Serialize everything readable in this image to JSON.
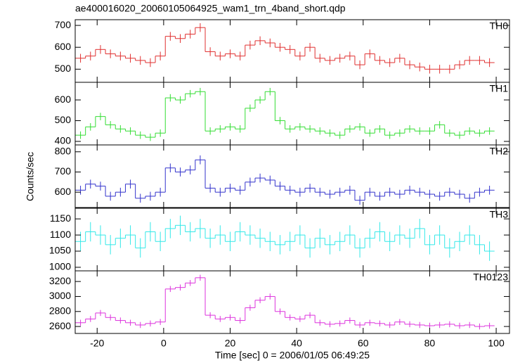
{
  "chart_data": [
    {
      "type": "step",
      "title": "ae400016020_20060105064925_wam1_trn_4band_short.qdp",
      "label": "TH0",
      "color": "#e03030",
      "x": [
        -25,
        -22,
        -19,
        -16,
        -13,
        -10,
        -7,
        -4,
        -1,
        2,
        5,
        8,
        11,
        14,
        17,
        20,
        23,
        26,
        29,
        32,
        35,
        38,
        41,
        44,
        47,
        50,
        53,
        56,
        59,
        62,
        65,
        68,
        71,
        74,
        77,
        80,
        83,
        86,
        89,
        92,
        95,
        98
      ],
      "values": [
        550,
        560,
        590,
        570,
        560,
        550,
        540,
        530,
        560,
        650,
        640,
        660,
        690,
        580,
        560,
        570,
        560,
        610,
        630,
        620,
        600,
        590,
        560,
        600,
        550,
        540,
        550,
        560,
        520,
        570,
        540,
        530,
        550,
        520,
        510,
        500,
        500,
        500,
        520,
        540,
        540,
        530
      ],
      "errors": [
        20,
        20,
        20,
        20,
        20,
        20,
        20,
        20,
        20,
        20,
        20,
        20,
        20,
        20,
        20,
        20,
        20,
        20,
        20,
        20,
        20,
        20,
        20,
        20,
        20,
        20,
        20,
        20,
        20,
        20,
        20,
        20,
        20,
        20,
        20,
        20,
        20,
        20,
        20,
        20,
        20,
        20
      ],
      "xlim": [
        -26.6,
        104
      ],
      "xticks": [
        -20,
        0,
        20,
        40,
        60,
        80,
        100
      ],
      "ylim": [
        440,
        726
      ],
      "yticks": [
        500,
        600,
        700
      ]
    },
    {
      "type": "step",
      "label": "TH1",
      "color": "#33dd33",
      "x": [
        -25,
        -22,
        -19,
        -16,
        -13,
        -10,
        -7,
        -4,
        -1,
        2,
        5,
        8,
        11,
        14,
        17,
        20,
        23,
        26,
        29,
        32,
        35,
        38,
        41,
        44,
        47,
        50,
        53,
        56,
        59,
        62,
        65,
        68,
        71,
        74,
        77,
        80,
        83,
        86,
        89,
        92,
        95,
        98
      ],
      "values": [
        430,
        470,
        520,
        480,
        460,
        450,
        430,
        420,
        440,
        610,
        600,
        630,
        640,
        450,
        460,
        470,
        460,
        560,
        600,
        640,
        500,
        460,
        470,
        460,
        450,
        440,
        430,
        460,
        470,
        440,
        460,
        430,
        440,
        460,
        450,
        450,
        480,
        440,
        430,
        450,
        440,
        450
      ],
      "errors": [
        18,
        18,
        18,
        18,
        18,
        18,
        18,
        18,
        18,
        18,
        18,
        18,
        18,
        18,
        18,
        18,
        18,
        18,
        18,
        18,
        18,
        18,
        18,
        18,
        18,
        18,
        18,
        18,
        18,
        18,
        18,
        18,
        18,
        18,
        18,
        18,
        18,
        18,
        18,
        18,
        18,
        18
      ],
      "xlim": [
        -26.6,
        104
      ],
      "xticks": [
        -20,
        0,
        20,
        40,
        60,
        80,
        100
      ],
      "ylim": [
        383,
        685
      ],
      "yticks": [
        400,
        500,
        600
      ]
    },
    {
      "type": "step",
      "label": "TH2",
      "color": "#3333cc",
      "ylabel": "Counts/sec",
      "x": [
        -25,
        -22,
        -19,
        -16,
        -13,
        -10,
        -7,
        -4,
        -1,
        2,
        5,
        8,
        11,
        14,
        17,
        20,
        23,
        26,
        29,
        32,
        35,
        38,
        41,
        44,
        47,
        50,
        53,
        56,
        59,
        62,
        65,
        68,
        71,
        74,
        77,
        80,
        83,
        86,
        89,
        92,
        95,
        98
      ],
      "values": [
        610,
        640,
        630,
        580,
        600,
        640,
        570,
        580,
        600,
        720,
        700,
        710,
        760,
        620,
        600,
        620,
        610,
        650,
        670,
        660,
        630,
        610,
        600,
        620,
        600,
        590,
        600,
        610,
        560,
        600,
        580,
        600,
        590,
        610,
        600,
        590,
        580,
        600,
        590,
        570,
        600,
        610
      ],
      "errors": [
        22,
        22,
        22,
        22,
        22,
        22,
        22,
        22,
        22,
        22,
        22,
        22,
        22,
        22,
        22,
        22,
        22,
        22,
        22,
        22,
        22,
        22,
        22,
        22,
        22,
        22,
        22,
        22,
        22,
        22,
        22,
        22,
        22,
        22,
        22,
        22,
        22,
        22,
        22,
        22,
        22,
        22
      ],
      "xlim": [
        -26.6,
        104
      ],
      "xticks": [
        -20,
        0,
        20,
        40,
        60,
        80,
        100
      ],
      "ylim": [
        524,
        834
      ],
      "yticks": [
        600,
        700,
        800
      ]
    },
    {
      "type": "step",
      "label": "TH3",
      "color": "#33e8e8",
      "x": [
        -25,
        -22,
        -19,
        -16,
        -13,
        -10,
        -7,
        -4,
        -1,
        2,
        5,
        8,
        11,
        14,
        17,
        20,
        23,
        26,
        29,
        32,
        35,
        38,
        41,
        44,
        47,
        50,
        53,
        56,
        59,
        62,
        65,
        68,
        71,
        74,
        77,
        80,
        83,
        86,
        89,
        92,
        95,
        98
      ],
      "values": [
        1080,
        1110,
        1100,
        1070,
        1090,
        1100,
        1060,
        1110,
        1080,
        1120,
        1130,
        1110,
        1120,
        1090,
        1100,
        1080,
        1110,
        1100,
        1090,
        1080,
        1070,
        1080,
        1100,
        1060,
        1090,
        1070,
        1080,
        1100,
        1060,
        1090,
        1110,
        1080,
        1100,
        1090,
        1120,
        1070,
        1100,
        1060,
        1080,
        1100,
        1070,
        1050
      ],
      "errors": [
        30,
        30,
        30,
        30,
        30,
        30,
        30,
        30,
        30,
        30,
        30,
        30,
        30,
        30,
        30,
        30,
        30,
        30,
        30,
        30,
        30,
        30,
        30,
        30,
        30,
        30,
        30,
        30,
        30,
        30,
        30,
        30,
        30,
        30,
        30,
        30,
        30,
        30,
        30,
        30,
        30,
        30
      ],
      "xlim": [
        -26.6,
        104
      ],
      "xticks": [
        -20,
        0,
        20,
        40,
        60,
        80,
        100
      ],
      "ylim": [
        989,
        1183
      ],
      "yticks": [
        1000,
        1050,
        1100,
        1150
      ]
    },
    {
      "type": "step",
      "label": "TH0123",
      "color": "#dd33dd",
      "xlabel": "Time [sec] 0 = 2006/01/05 06:49:25",
      "x": [
        -25,
        -22,
        -19,
        -16,
        -13,
        -10,
        -7,
        -4,
        -1,
        2,
        5,
        8,
        11,
        14,
        17,
        20,
        23,
        26,
        29,
        32,
        35,
        38,
        41,
        44,
        47,
        50,
        53,
        56,
        59,
        62,
        65,
        68,
        71,
        74,
        77,
        80,
        83,
        86,
        89,
        92,
        95,
        98
      ],
      "values": [
        2650,
        2700,
        2780,
        2720,
        2680,
        2650,
        2620,
        2640,
        2660,
        3100,
        3120,
        3180,
        3250,
        2750,
        2700,
        2720,
        2680,
        2850,
        2950,
        3000,
        2800,
        2720,
        2700,
        2750,
        2650,
        2630,
        2640,
        2680,
        2620,
        2650,
        2640,
        2620,
        2660,
        2630,
        2620,
        2610,
        2620,
        2630,
        2610,
        2620,
        2600,
        2610
      ],
      "errors": [
        40,
        40,
        40,
        40,
        40,
        40,
        40,
        40,
        40,
        40,
        40,
        40,
        40,
        40,
        40,
        40,
        40,
        40,
        40,
        40,
        40,
        40,
        40,
        40,
        40,
        40,
        40,
        40,
        40,
        40,
        40,
        40,
        40,
        40,
        40,
        40,
        40,
        40,
        40,
        40,
        40,
        40
      ],
      "xlim": [
        -26.6,
        104
      ],
      "xticks": [
        -20,
        0,
        20,
        40,
        60,
        80,
        100
      ],
      "ylim": [
        2507,
        3342
      ],
      "yticks": [
        2600,
        2800,
        3000,
        3200
      ]
    }
  ]
}
